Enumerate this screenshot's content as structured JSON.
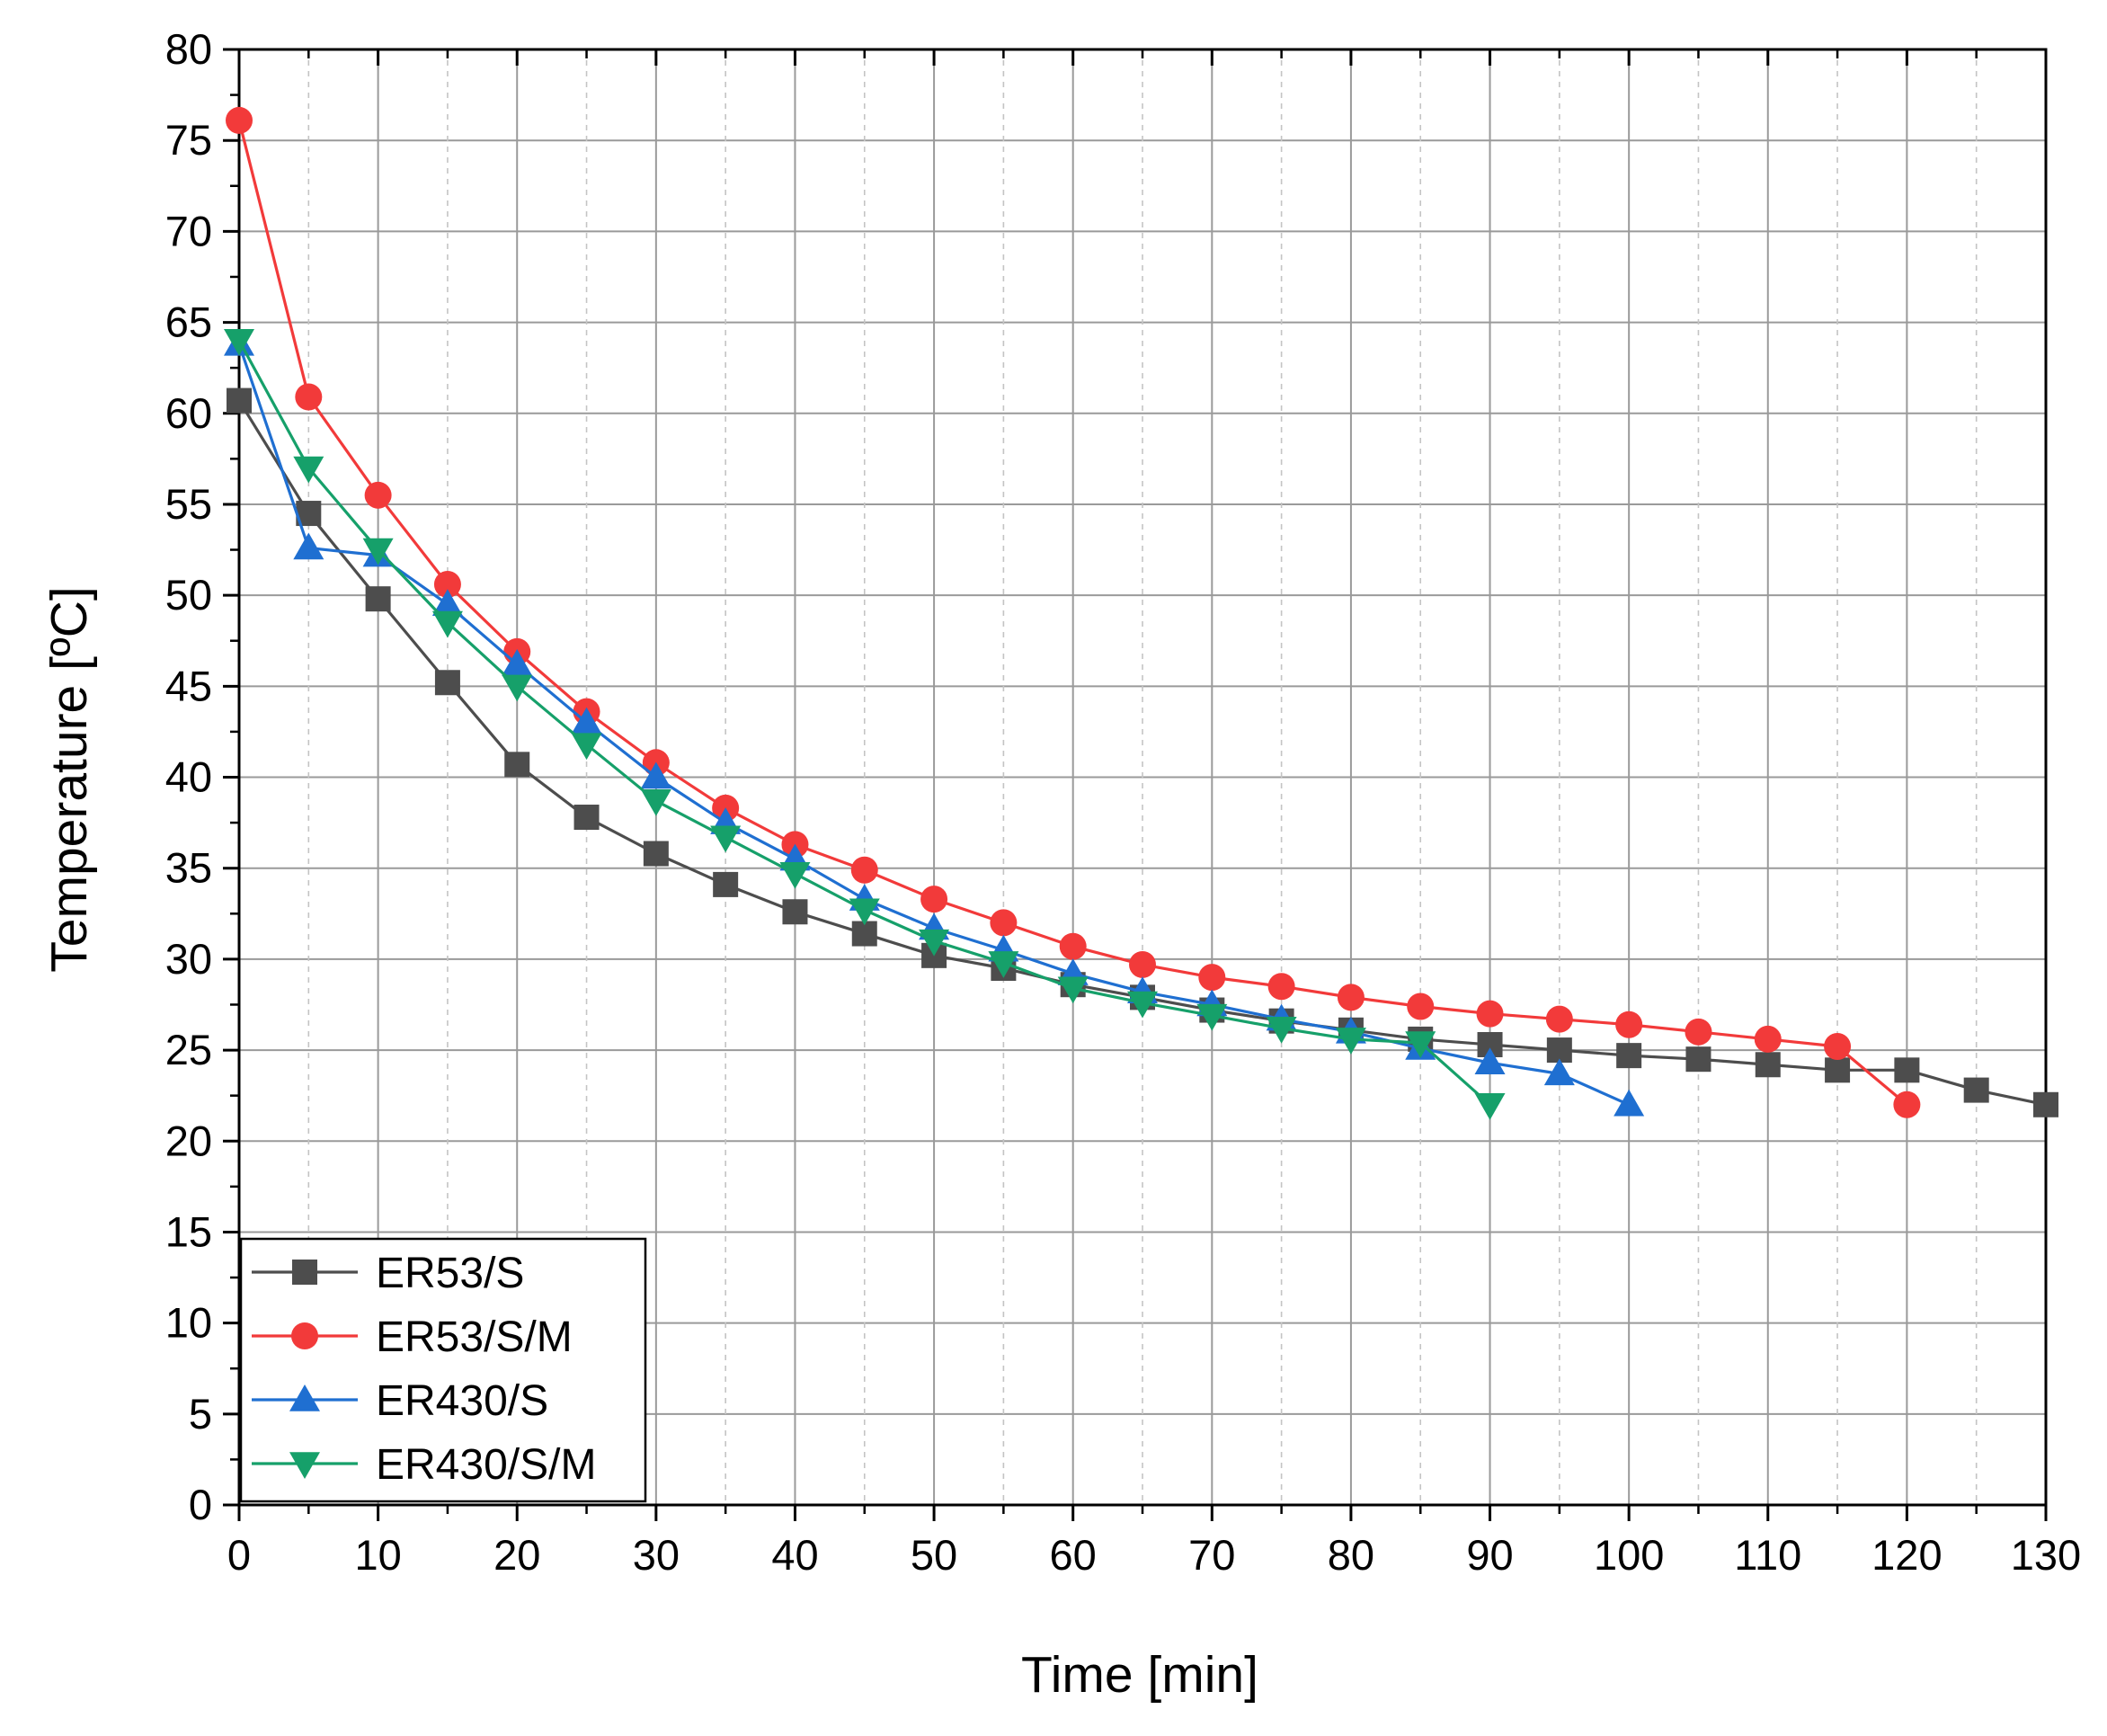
{
  "chart_data": {
    "type": "line",
    "title": "",
    "xlabel": "Time [min]",
    "ylabel": "Temperature [ºC]",
    "xlim": [
      0,
      130
    ],
    "ylim": [
      0,
      80
    ],
    "xticks": [
      0,
      10,
      20,
      30,
      40,
      50,
      60,
      70,
      80,
      90,
      100,
      110,
      120,
      130
    ],
    "yticks": [
      0,
      5,
      10,
      15,
      20,
      25,
      30,
      35,
      40,
      45,
      50,
      55,
      60,
      65,
      70,
      75,
      80
    ],
    "grid": true,
    "legend_position": "bottom-left",
    "series": [
      {
        "name": "ER53/S",
        "color": "#4d4d4d",
        "marker": "square",
        "x": [
          0,
          5,
          10,
          15,
          20,
          25,
          30,
          35,
          40,
          45,
          50,
          55,
          60,
          65,
          70,
          75,
          80,
          85,
          90,
          95,
          100,
          105,
          110,
          115,
          120,
          125,
          130
        ],
        "values": [
          60.7,
          54.5,
          49.8,
          45.2,
          40.7,
          37.8,
          35.8,
          34.1,
          32.6,
          31.4,
          30.2,
          29.5,
          28.6,
          27.9,
          27.2,
          26.6,
          26.1,
          25.6,
          25.3,
          25.0,
          24.7,
          24.5,
          24.2,
          23.9,
          23.9,
          22.8,
          22.0
        ]
      },
      {
        "name": "ER53/S/M",
        "color": "#f23a3a",
        "marker": "circle",
        "x": [
          0,
          5,
          10,
          15,
          20,
          25,
          30,
          35,
          40,
          45,
          50,
          55,
          60,
          65,
          70,
          75,
          80,
          85,
          90,
          95,
          100,
          105,
          110,
          115,
          120
        ],
        "values": [
          76.1,
          60.9,
          55.5,
          50.6,
          46.9,
          43.6,
          40.8,
          38.3,
          36.3,
          34.9,
          33.3,
          32.0,
          30.7,
          29.7,
          29.0,
          28.5,
          27.9,
          27.4,
          27.0,
          26.7,
          26.4,
          26.0,
          25.6,
          25.2,
          22.0
        ]
      },
      {
        "name": "ER430/S",
        "color": "#1f6fd1",
        "marker": "triangle-up",
        "x": [
          0,
          5,
          10,
          15,
          20,
          25,
          30,
          35,
          40,
          45,
          50,
          55,
          60,
          65,
          70,
          75,
          80,
          85,
          90,
          95,
          100
        ],
        "values": [
          63.8,
          52.6,
          52.2,
          49.5,
          46.2,
          43.0,
          40.0,
          37.5,
          35.5,
          33.3,
          31.7,
          30.5,
          29.2,
          28.2,
          27.5,
          26.7,
          26.0,
          25.1,
          24.3,
          23.7,
          22.0
        ]
      },
      {
        "name": "ER430/S/M",
        "color": "#16a06a",
        "marker": "triangle-down",
        "x": [
          0,
          5,
          10,
          15,
          20,
          25,
          30,
          35,
          40,
          45,
          50,
          55,
          60,
          65,
          70,
          75,
          80,
          85,
          90
        ],
        "values": [
          64.0,
          57.0,
          52.5,
          48.5,
          45.0,
          41.8,
          38.7,
          36.7,
          34.7,
          32.7,
          31.0,
          29.8,
          28.4,
          27.6,
          26.9,
          26.2,
          25.6,
          25.4,
          22.0
        ]
      }
    ]
  }
}
